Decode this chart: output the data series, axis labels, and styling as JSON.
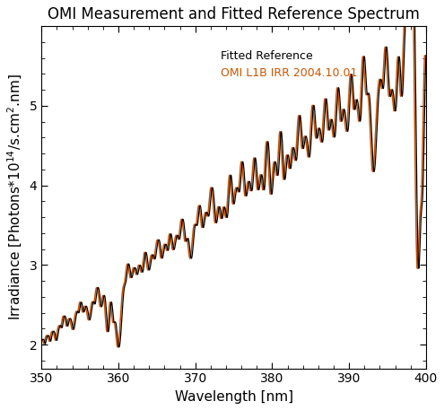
{
  "title": "OMI Measurement and Fitted Reference Spectrum",
  "xlabel": "Wavelength [nm]",
  "ylabel": "Irradiance [Photons*10$^{14}$/s.cm$^2$.nm]",
  "xlim": [
    350,
    400
  ],
  "ylim": [
    1.7,
    6.0
  ],
  "yticks": [
    2,
    3,
    4,
    5
  ],
  "xticks": [
    350,
    360,
    370,
    380,
    390,
    400
  ],
  "line1_label": "OMI L1B IRR 2004.10.01",
  "line2_label": "Fitted Reference",
  "line1_color": "#000000",
  "line2_color": "#cc5500",
  "legend_fontsize": 9,
  "title_fontsize": 12,
  "axis_fontsize": 11,
  "tick_fontsize": 10,
  "linewidth1": 0.9,
  "linewidth2": 1.1,
  "background_color": "#ffffff",
  "figsize": [
    4.95,
    4.57
  ],
  "dpi": 100
}
